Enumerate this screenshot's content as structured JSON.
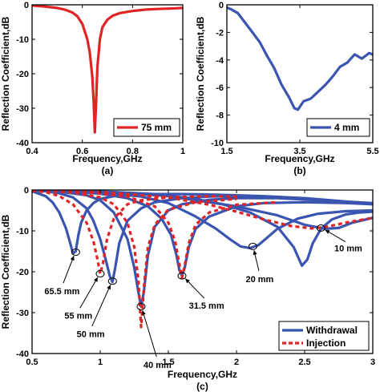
{
  "chart_data": [
    {
      "id": "a",
      "type": "line",
      "panel_label": "(a)",
      "xlabel": "Frequency,GHz",
      "ylabel": "Reflection Coefficient,dB",
      "xlim": [
        0.4,
        1.0
      ],
      "ylim": [
        -40,
        0
      ],
      "xticks": [
        0.4,
        0.6,
        0.8,
        1
      ],
      "xtick_labels": [
        "0.4",
        "0.6",
        "0.8",
        "1"
      ],
      "yticks": [
        0,
        -10,
        -20,
        -30,
        -40
      ],
      "ytick_labels": [
        "0",
        "-10",
        "-20",
        "-30",
        "-40"
      ],
      "legend_position": "bottom-right",
      "series": [
        {
          "name": "75 mm",
          "color": "#e02424",
          "style": "solid",
          "x": [
            0.4,
            0.45,
            0.5,
            0.53,
            0.56,
            0.58,
            0.6,
            0.62,
            0.63,
            0.64,
            0.645,
            0.65,
            0.655,
            0.66,
            0.67,
            0.68,
            0.7,
            0.72,
            0.75,
            0.8,
            0.85,
            0.9,
            0.95,
            1.0
          ],
          "y": [
            -0.2,
            -0.5,
            -0.9,
            -1.4,
            -2.2,
            -3.3,
            -5.5,
            -10,
            -14,
            -21,
            -28,
            -37,
            -28,
            -18,
            -10,
            -6.5,
            -4.3,
            -3.2,
            -2.4,
            -1.8,
            -1.4,
            -1.2,
            -1.1,
            -0.9
          ]
        }
      ]
    },
    {
      "id": "b",
      "type": "line",
      "panel_label": "(b)",
      "xlabel": "Frequency,GHz",
      "ylabel": "Reflection Coefficient,dB",
      "xlim": [
        1.5,
        5.5
      ],
      "ylim": [
        -10,
        0
      ],
      "xticks": [
        1.5,
        3.5,
        5.5
      ],
      "xtick_labels": [
        "1.5",
        "3.5",
        "5.5"
      ],
      "yticks": [
        0,
        -2,
        -4,
        -6,
        -8,
        -10
      ],
      "ytick_labels": [
        "0",
        "-2",
        "-4",
        "-6",
        "-8",
        "-10"
      ],
      "legend_position": "bottom-right",
      "series": [
        {
          "name": "4 mm",
          "color": "#3a55b0",
          "style": "solid",
          "x": [
            1.5,
            1.6,
            1.8,
            2.0,
            2.2,
            2.4,
            2.6,
            2.8,
            3.0,
            3.2,
            3.35,
            3.45,
            3.6,
            3.8,
            4.0,
            4.2,
            4.4,
            4.6,
            4.8,
            5.0,
            5.2,
            5.4,
            5.5
          ],
          "y": [
            -0.2,
            -0.3,
            -0.6,
            -1.3,
            -2.0,
            -2.7,
            -3.7,
            -4.6,
            -5.8,
            -6.7,
            -7.5,
            -7.6,
            -7.0,
            -6.8,
            -6.3,
            -5.8,
            -5.2,
            -4.5,
            -4.2,
            -3.6,
            -3.9,
            -3.5,
            -3.6
          ]
        }
      ]
    },
    {
      "id": "c",
      "type": "line",
      "panel_label": "(c)",
      "xlabel": "Frequency,GHz",
      "ylabel": "Reflection Coefficient,dB",
      "xlim": [
        0.5,
        3.0
      ],
      "ylim": [
        -40,
        0
      ],
      "xticks": [
        0.5,
        1,
        1.5,
        2,
        2.5,
        3
      ],
      "xtick_labels": [
        "0.5",
        "1",
        "1.5",
        "2",
        "2.5",
        "3"
      ],
      "yticks": [
        0,
        -10,
        -20,
        -30,
        -40
      ],
      "ytick_labels": [
        "0",
        "-10",
        "-20",
        "-30",
        "-40"
      ],
      "legend_position": "bottom-right",
      "legend": [
        {
          "name": "Withdrawal",
          "color": "#3a55b0",
          "style": "solid"
        },
        {
          "name": "Injection",
          "color": "#e02424",
          "style": "dashed"
        }
      ],
      "series": [
        {
          "name": "Withdrawal",
          "length": "65.5 mm",
          "color": "#3a55b0",
          "style": "solid",
          "x": [
            0.5,
            0.6,
            0.65,
            0.7,
            0.75,
            0.78,
            0.8,
            0.82,
            0.84,
            0.86,
            0.9,
            0.95,
            1.0,
            1.1,
            1.2,
            1.4,
            1.6,
            1.8,
            2.0,
            2.2,
            2.5,
            2.8,
            3.0
          ],
          "y": [
            -0.3,
            -1.5,
            -3.0,
            -5.5,
            -9.5,
            -13,
            -15.5,
            -15,
            -11,
            -8,
            -5,
            -3.2,
            -2.2,
            -1.5,
            -1.2,
            -1.0,
            -1.0,
            -1.1,
            -1.3,
            -1.5,
            -2.0,
            -2.8,
            -3.3
          ]
        },
        {
          "name": "Withdrawal",
          "length": "55 mm",
          "color": "#3a55b0",
          "style": "solid",
          "x": [
            0.5,
            0.6,
            0.7,
            0.8,
            0.9,
            0.95,
            1.0,
            1.04,
            1.07,
            1.09,
            1.11,
            1.14,
            1.2,
            1.3,
            1.4,
            1.6,
            1.8,
            2.0,
            2.3,
            2.6,
            3.0
          ],
          "y": [
            -0.1,
            -0.3,
            -0.8,
            -1.8,
            -4.5,
            -7.5,
            -12,
            -17,
            -21,
            -22.5,
            -19,
            -13,
            -7.5,
            -4.5,
            -3.0,
            -2.0,
            -1.6,
            -1.5,
            -1.7,
            -2.3,
            -3.5
          ]
        },
        {
          "name": "Withdrawal",
          "length": "40 mm",
          "color": "#3a55b0",
          "style": "solid",
          "x": [
            0.5,
            0.7,
            0.9,
            1.0,
            1.1,
            1.2,
            1.25,
            1.28,
            1.3,
            1.32,
            1.35,
            1.4,
            1.5,
            1.6,
            1.8,
            2.0,
            2.3,
            2.6,
            3.0
          ],
          "y": [
            -0.1,
            -0.4,
            -1.3,
            -2.5,
            -5.5,
            -12,
            -19,
            -25,
            -28.5,
            -25,
            -16,
            -9,
            -5,
            -3.5,
            -2.4,
            -2.0,
            -2.0,
            -2.5,
            -3.2
          ]
        },
        {
          "name": "Withdrawal",
          "length": "31.5 mm",
          "color": "#3a55b0",
          "style": "solid",
          "x": [
            0.5,
            0.8,
            1.0,
            1.2,
            1.35,
            1.45,
            1.52,
            1.56,
            1.58,
            1.6,
            1.62,
            1.65,
            1.7,
            1.8,
            2.0,
            2.2,
            2.5,
            2.8,
            3.0
          ],
          "y": [
            -0.1,
            -0.4,
            -0.9,
            -2.0,
            -4.0,
            -7.0,
            -11,
            -16,
            -19.5,
            -21,
            -19,
            -14,
            -9.5,
            -6.5,
            -4.0,
            -3.2,
            -3.0,
            -3.2,
            -3.5
          ]
        },
        {
          "name": "Withdrawal",
          "length": "20 mm",
          "color": "#3a55b0",
          "style": "solid",
          "x": [
            0.5,
            0.8,
            1.0,
            1.3,
            1.5,
            1.7,
            1.85,
            1.95,
            2.03,
            2.1,
            2.16,
            2.22,
            2.3,
            2.45,
            2.6,
            2.8,
            3.0
          ],
          "y": [
            -0.1,
            -0.3,
            -0.6,
            -1.6,
            -3.2,
            -6.5,
            -9.5,
            -12,
            -13.8,
            -14.2,
            -13.5,
            -11.8,
            -9.5,
            -7.0,
            -5.8,
            -5.2,
            -5.0
          ]
        },
        {
          "name": "Withdrawal",
          "length": "10 mm",
          "color": "#3a55b0",
          "style": "solid",
          "x": [
            0.5,
            0.8,
            1.1,
            1.4,
            1.7,
            1.9,
            2.1,
            2.3,
            2.42,
            2.48,
            2.52,
            2.56,
            2.62,
            2.7,
            2.8,
            2.9,
            3.0
          ],
          "y": [
            -0.1,
            -0.2,
            -0.5,
            -1.0,
            -2.2,
            -3.5,
            -5.5,
            -9.0,
            -14,
            -18.5,
            -17,
            -13,
            -9.5,
            -7.2,
            -6.0,
            -5.5,
            -5.3
          ]
        },
        {
          "name": "Withdrawal",
          "length": "",
          "color": "#3a55b0",
          "style": "solid",
          "x": [
            0.5,
            1.0,
            1.5,
            2.0,
            2.3,
            2.5,
            2.65,
            2.75,
            2.85,
            3.0
          ],
          "y": [
            -0.1,
            -0.4,
            -1.5,
            -4.0,
            -6.2,
            -8.5,
            -9.5,
            -9.3,
            -8.0,
            -6.8
          ]
        },
        {
          "name": "Injection",
          "length": "",
          "color": "#e02424",
          "style": "dashed",
          "x": [
            0.5,
            0.6,
            0.7,
            0.8,
            0.9,
            0.95,
            0.98,
            1.0,
            1.02,
            1.05,
            1.1,
            1.2,
            1.3,
            1.5,
            1.8,
            2.0
          ],
          "y": [
            -0.2,
            -0.5,
            -1.5,
            -3.5,
            -8.0,
            -12.5,
            -17,
            -20.5,
            -18,
            -12,
            -7.0,
            -3.5,
            -2.5,
            -1.8,
            -1.5,
            -1.6
          ]
        },
        {
          "name": "Injection",
          "length": "",
          "color": "#e02424",
          "style": "dashed",
          "x": [
            0.5,
            0.8,
            1.0,
            1.1,
            1.2,
            1.25,
            1.28,
            1.3,
            1.32,
            1.35,
            1.4,
            1.5,
            1.7,
            2.0
          ],
          "y": [
            -0.1,
            -0.6,
            -1.8,
            -3.5,
            -8.0,
            -14,
            -22,
            -33.5,
            -24,
            -14,
            -8.5,
            -4.8,
            -3.0,
            -2.2
          ]
        },
        {
          "name": "Injection",
          "length": "",
          "color": "#e02424",
          "style": "dashed",
          "x": [
            0.5,
            0.9,
            1.2,
            1.4,
            1.5,
            1.55,
            1.58,
            1.6,
            1.62,
            1.65,
            1.7,
            1.8,
            2.0,
            2.3
          ],
          "y": [
            -0.1,
            -0.5,
            -1.6,
            -4.0,
            -8.0,
            -12.5,
            -18,
            -21.5,
            -18.5,
            -13,
            -8.5,
            -5.5,
            -3.6,
            -3.0
          ]
        },
        {
          "name": "Injection",
          "length": "",
          "color": "#e02424",
          "style": "dashed",
          "x": [
            0.5,
            1.0,
            1.5,
            1.8,
            2.0,
            2.2,
            2.4,
            2.55,
            2.65,
            2.8,
            3.0
          ],
          "y": [
            -0.1,
            -0.5,
            -1.8,
            -3.6,
            -5.3,
            -7.2,
            -8.8,
            -9.4,
            -9.1,
            -8.0,
            -6.8
          ]
        }
      ],
      "annotations": [
        {
          "text": "65.5 mm",
          "marker": [
            0.82,
            -15.2
          ],
          "label_at": [
            0.72,
            -25.5
          ]
        },
        {
          "text": "55 mm",
          "marker": [
            1.0,
            -20.5
          ],
          "label_at": [
            0.84,
            -31.5
          ]
        },
        {
          "text": "50 mm",
          "marker": [
            1.09,
            -22.3
          ],
          "label_at": [
            0.93,
            -36.0
          ]
        },
        {
          "text": "40 mm",
          "marker": [
            1.3,
            -28.5
          ],
          "label_at": [
            1.42,
            -43.5
          ]
        },
        {
          "text": "31.5 mm",
          "marker": [
            1.6,
            -21.0
          ],
          "label_at": [
            1.78,
            -29.0
          ]
        },
        {
          "text": "20 mm",
          "marker": [
            2.12,
            -13.8
          ],
          "label_at": [
            2.17,
            -22.5
          ]
        },
        {
          "text": "10 mm",
          "marker": [
            2.62,
            -9.3
          ],
          "label_at": [
            2.82,
            -15.0
          ]
        }
      ]
    }
  ]
}
